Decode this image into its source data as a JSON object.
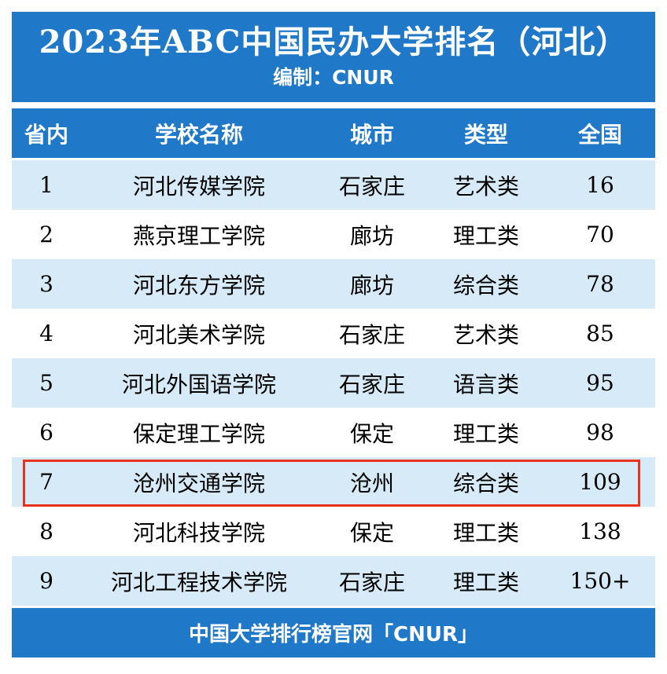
{
  "title": "2023年ABC中国民办大学排名（河北）",
  "subtitle": "编制：CNUR",
  "columns": [
    "省内",
    "学校名称",
    "城市",
    "类型",
    "全国"
  ],
  "rows": [
    {
      "rank": "1",
      "name": "河北传媒学院",
      "city": "石家庄",
      "type": "艺术类",
      "national": "16"
    },
    {
      "rank": "2",
      "name": "燕京理工学院",
      "city": "廊坊",
      "type": "理工类",
      "national": "70"
    },
    {
      "rank": "3",
      "name": "河北东方学院",
      "city": "廊坊",
      "type": "综合类",
      "national": "78"
    },
    {
      "rank": "4",
      "name": "河北美术学院",
      "city": "石家庄",
      "type": "艺术类",
      "national": "85"
    },
    {
      "rank": "5",
      "name": "河北外国语学院",
      "city": "石家庄",
      "type": "语言类",
      "national": "95"
    },
    {
      "rank": "6",
      "name": "保定理工学院",
      "city": "保定",
      "type": "理工类",
      "national": "98"
    },
    {
      "rank": "7",
      "name": "沧州交通学院",
      "city": "沧州",
      "type": "综合类",
      "national": "109"
    },
    {
      "rank": "8",
      "name": "河北科技学院",
      "city": "保定",
      "type": "理工类",
      "national": "138"
    },
    {
      "rank": "9",
      "name": "河北工程技术学院",
      "city": "石家庄",
      "type": "理工类",
      "national": "150+"
    }
  ],
  "highlighted_row": "7",
  "footer": "中国大学排行榜官网「CNUR」",
  "colors": {
    "header_blue": "#1f78c8",
    "row_light_blue": "#d6ebf7",
    "highlight_red": "#e8321e"
  }
}
